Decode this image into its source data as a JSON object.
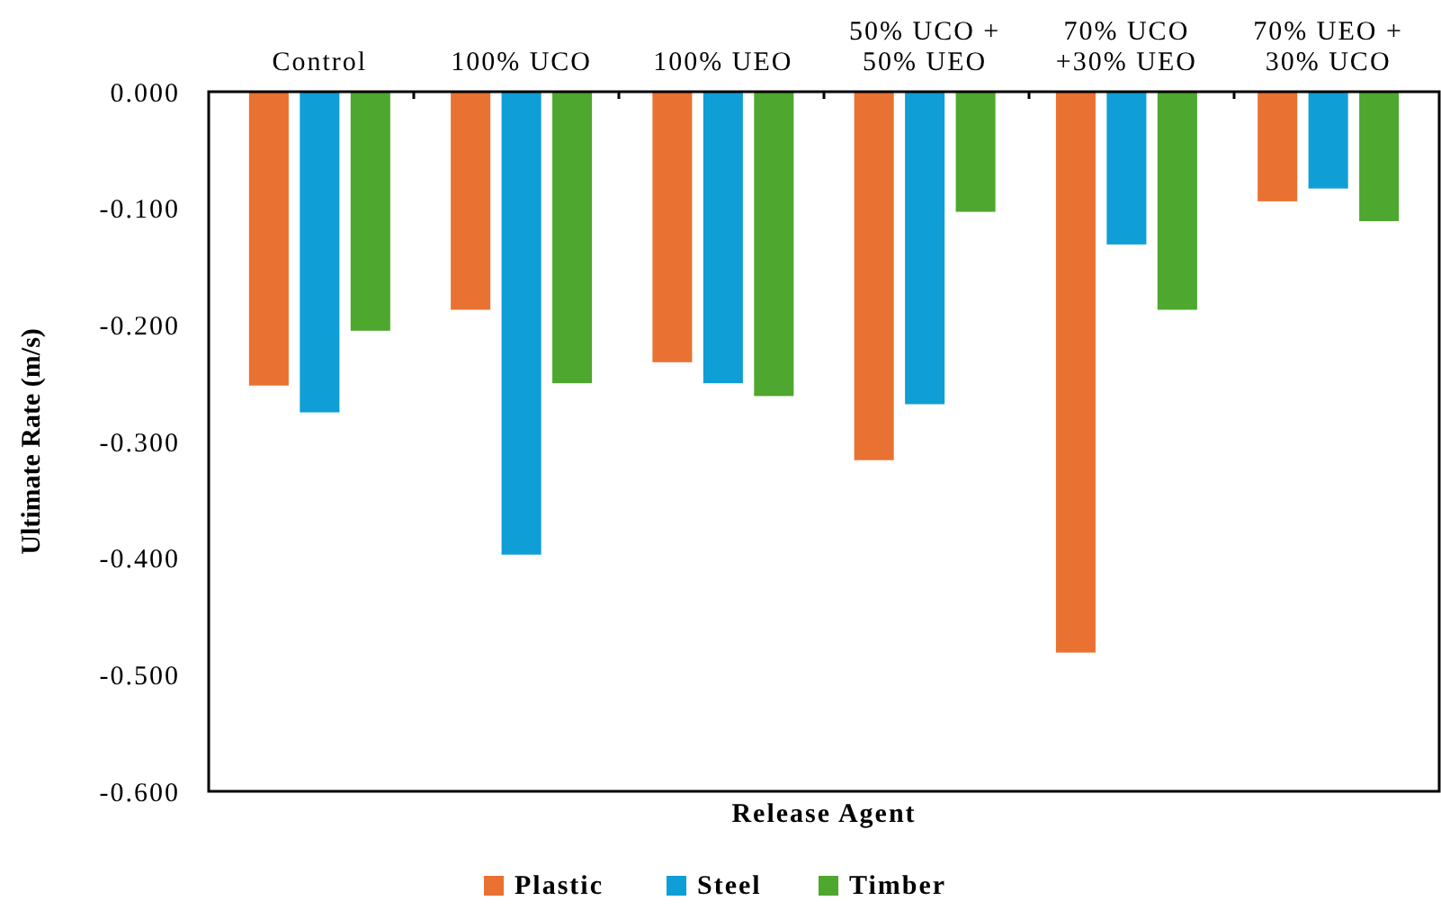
{
  "chart_data": {
    "type": "bar",
    "xlabel": "Release Agent",
    "ylabel": "Ultimate Rate (m/s)",
    "categories": [
      "Control",
      "100% UCO",
      "100% UEO",
      "50% UCO + 50% UEO",
      "70% UCO +30% UEO",
      "70% UEO + 30% UCO"
    ],
    "series": [
      {
        "name": "Plastic",
        "color": "#e97132",
        "values": [
          -0.252,
          -0.187,
          -0.232,
          -0.316,
          -0.481,
          -0.094
        ]
      },
      {
        "name": "Steel",
        "color": "#0f9ed5",
        "values": [
          -0.275,
          -0.397,
          -0.25,
          -0.268,
          -0.131,
          -0.083
        ]
      },
      {
        "name": "Timber",
        "color": "#4ea72e",
        "values": [
          -0.205,
          -0.25,
          -0.261,
          -0.103,
          -0.187,
          -0.111
        ]
      }
    ],
    "ylim": [
      -0.6,
      0
    ],
    "yticks": [
      {
        "value": -0.6,
        "label": "-0.600"
      },
      {
        "value": -0.5,
        "label": "-0.500"
      },
      {
        "value": -0.4,
        "label": "-0.400"
      },
      {
        "value": -0.3,
        "label": "-0.300"
      },
      {
        "value": -0.2,
        "label": "-0.200"
      },
      {
        "value": -0.1,
        "label": "-0.100"
      },
      {
        "value": 0,
        "label": "0.000"
      }
    ],
    "grid": false,
    "legend": "bottom"
  }
}
